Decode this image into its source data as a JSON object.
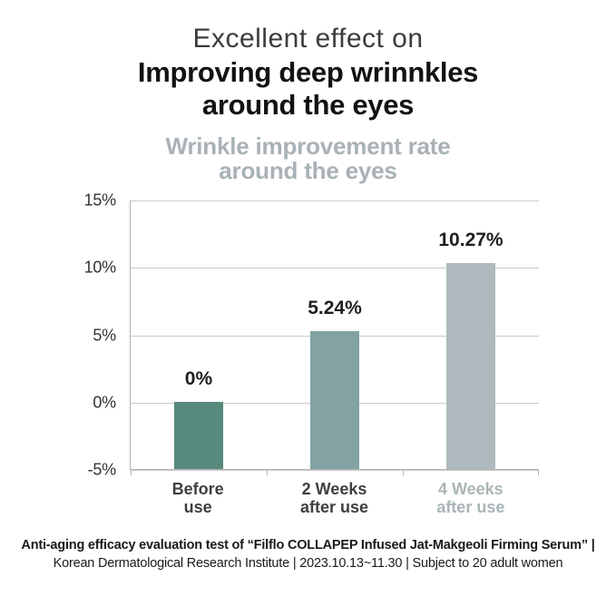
{
  "header": {
    "line1": "Excellent effect on",
    "line2": "Improving deep wrinnkles",
    "line3": "around the eyes"
  },
  "chart_data": {
    "type": "bar",
    "title_line1": "Wrinkle improvement rate",
    "title_line2": "around the eyes",
    "title_color": "#a9b2b6",
    "categories": [
      {
        "line1": "Before",
        "line2": "use",
        "label_color": "#3f3f3f"
      },
      {
        "line1": "2 Weeks",
        "line2": "after use",
        "label_color": "#3f3f3f"
      },
      {
        "line1": "4 Weeks",
        "line2": "after use",
        "label_color": "#a9b5b6"
      }
    ],
    "values": [
      0,
      5.24,
      10.27
    ],
    "value_labels": [
      "0%",
      "5.24%",
      "10.27%"
    ],
    "bar_colors": [
      "#578a7c",
      "#82a2a3",
      "#aebabd"
    ],
    "ylim": [
      -5,
      15
    ],
    "yticks": [
      {
        "value": 15,
        "label": "15%"
      },
      {
        "value": 10,
        "label": "10%"
      },
      {
        "value": 5,
        "label": "5%"
      },
      {
        "value": 0,
        "label": "0%"
      },
      {
        "value": -5,
        "label": "-5%"
      }
    ],
    "grid": true,
    "gridline_color": "#cbcbcb",
    "axis_color": "#b3b3b3",
    "legend": "none"
  },
  "footer": {
    "line1": "Anti-aging efficacy evaluation test of “Filflo COLLAPEP Infused Jat-Makgeoli Firming Serum” |",
    "line2": "Korean Dermatological Research Institute | 2023.10.13~11.30 | Subject to 20 adult women"
  }
}
